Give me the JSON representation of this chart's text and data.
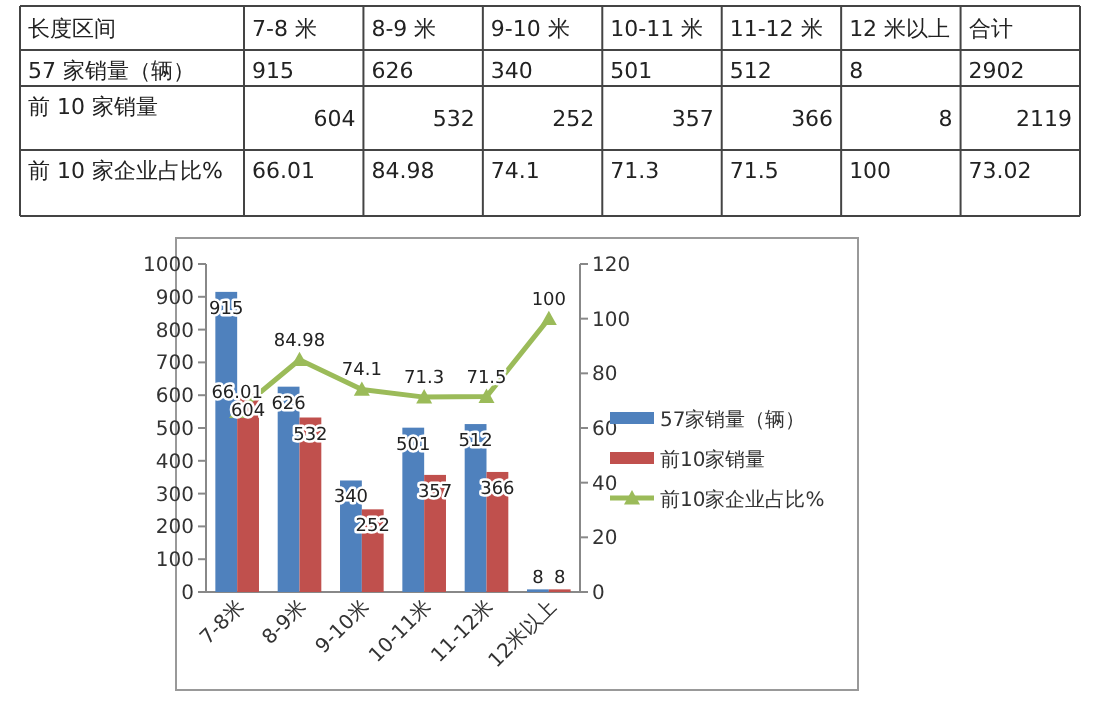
{
  "chart_data": [
    {
      "type": "other",
      "categories": [
        "7-8 米",
        "8-9 米",
        "9-10 米",
        "10-11 米",
        "11-12 米",
        "12 米以上"
      ],
      "series": [
        {
          "name": "57 家销量（辆）",
          "values": [
            915,
            626,
            340,
            501,
            512,
            8
          ]
        },
        {
          "name": "前 10 家销量",
          "values": [
            604,
            532,
            252,
            357,
            366,
            8
          ]
        },
        {
          "name": "前 10 家企业占比%",
          "values": [
            66.01,
            84.98,
            74.1,
            71.3,
            71.5,
            100
          ]
        }
      ],
      "data_labels": true,
      "annotations": [
        "长度区间",
        "合计",
        "2902",
        "2119",
        "73.02"
      ]
    },
    {
      "type": "bar",
      "categories": [
        "7-8米",
        "8-9米",
        "9-10米",
        "10-11米",
        "11-12米",
        "12米以上"
      ],
      "series": [
        {
          "name": "57家销量（辆）",
          "color": "#4f81bd",
          "values": [
            915,
            626,
            340,
            501,
            512,
            8
          ]
        },
        {
          "name": "前10家销量",
          "color": "#c0504d",
          "values": [
            604,
            532,
            252,
            357,
            366,
            8
          ]
        },
        {
          "name": "前10家企业占比%",
          "type": "line",
          "axis": "y2",
          "color": "#9bbb59",
          "marker": "triangle",
          "values": [
            66.01,
            84.98,
            74.1,
            71.3,
            71.5,
            100
          ]
        }
      ],
      "ylim": [
        0,
        1000
      ],
      "yticks": [
        0,
        100,
        200,
        300,
        400,
        500,
        600,
        700,
        800,
        900,
        1000
      ],
      "y2lim": [
        0,
        120
      ],
      "y2ticks": [
        0,
        20,
        40,
        60,
        80,
        100,
        120
      ],
      "data_labels": true,
      "legend": "right"
    }
  ]
}
